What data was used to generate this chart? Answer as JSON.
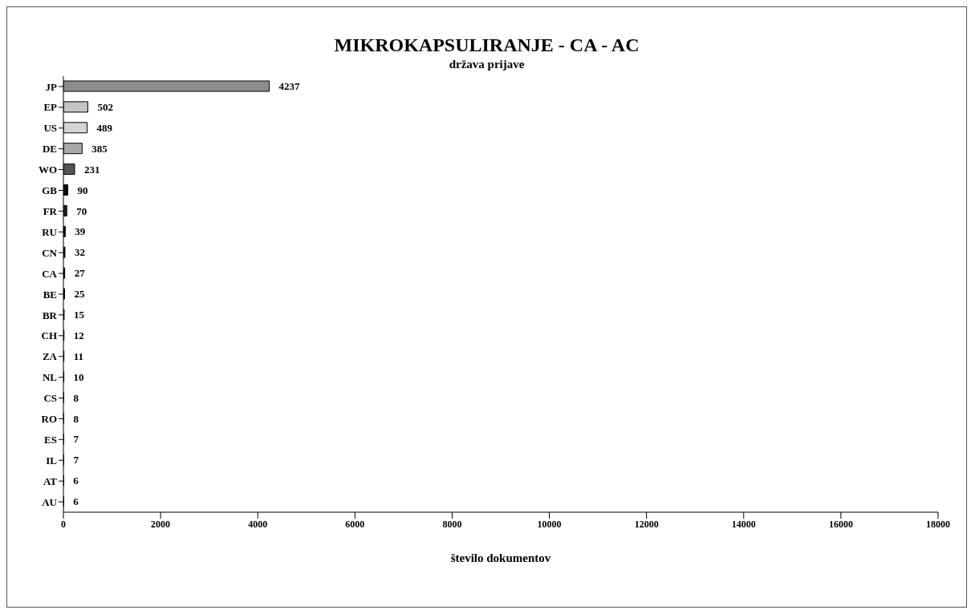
{
  "chart_data": {
    "type": "bar",
    "orientation": "horizontal",
    "title": "MIKROKAPSULIRANJE - CA - AC",
    "subtitle": "država prijave",
    "xlabel": "število dokumentov",
    "categories": [
      "JP",
      "EP",
      "US",
      "DE",
      "WO",
      "GB",
      "FR",
      "RU",
      "CN",
      "CA",
      "BE",
      "BR",
      "CH",
      "ZA",
      "NL",
      "CS",
      "RO",
      "ES",
      "IL",
      "AT",
      "AU"
    ],
    "values": [
      4237,
      502,
      489,
      385,
      231,
      90,
      70,
      39,
      32,
      27,
      25,
      15,
      12,
      11,
      10,
      8,
      8,
      7,
      7,
      6,
      6
    ],
    "colors": [
      "#8c8c8c",
      "#c4c4c4",
      "#d4d4d4",
      "#a8a8a8",
      "#555555",
      "#111111",
      "#222222",
      "#111111",
      "#111111",
      "#111111",
      "#111111",
      "#111111",
      "#111111",
      "#111111",
      "#111111",
      "#111111",
      "#111111",
      "#111111",
      "#111111",
      "#111111",
      "#111111"
    ],
    "xlim": [
      0,
      18000
    ],
    "xticks": [
      0,
      2000,
      4000,
      6000,
      8000,
      10000,
      12000,
      14000,
      16000,
      18000
    ],
    "data_labels": true,
    "grid": false,
    "legend": false
  }
}
